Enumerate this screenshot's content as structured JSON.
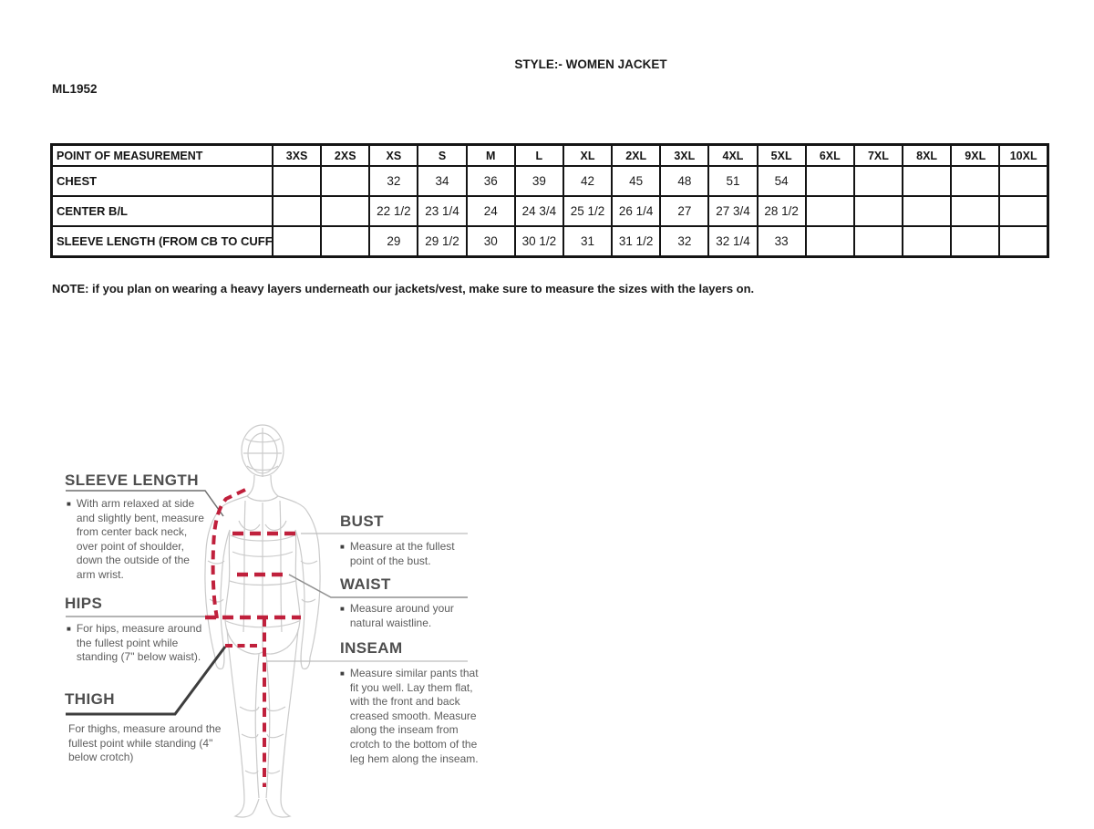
{
  "page": {
    "title": "STYLE:- WOMEN JACKET",
    "model": "ML1952",
    "note": "NOTE: if you plan on wearing a heavy layers underneath our jackets/vest, make sure to measure the sizes with the layers on."
  },
  "size_chart": {
    "header": [
      "POINT OF MEASUREMENT",
      "3XS",
      "2XS",
      "XS",
      "S",
      "M",
      "L",
      "XL",
      "2XL",
      "3XL",
      "4XL",
      "5XL",
      "6XL",
      "7XL",
      "8XL",
      "9XL",
      "10XL"
    ],
    "rows": [
      {
        "label": "CHEST",
        "values": [
          "",
          "",
          "32",
          "34",
          "36",
          "39",
          "42",
          "45",
          "48",
          "51",
          "54",
          "",
          "",
          "",
          "",
          ""
        ]
      },
      {
        "label": "CENTER B/L",
        "values": [
          "",
          "",
          "22 1/2",
          "23 1/4",
          "24",
          "24 3/4",
          "25 1/2",
          "26 1/4",
          "27",
          "27 3/4",
          "28 1/2",
          "",
          "",
          "",
          "",
          ""
        ]
      },
      {
        "label": "SLEEVE LENGTH (FROM CB TO CUFF)",
        "values": [
          "",
          "",
          "29",
          "29 1/2",
          "30",
          "30 1/2",
          "31",
          "31 1/2",
          "32",
          "32 1/4",
          "33",
          "",
          "",
          "",
          "",
          ""
        ]
      }
    ]
  },
  "diagram": {
    "sleeve": {
      "title": "SLEEVE LENGTH",
      "desc": "With arm relaxed at side and slightly bent, measure from center back neck, over point of shoulder, down the outside of the arm wrist."
    },
    "hips": {
      "title": "HIPS",
      "desc": "For hips, measure around the fullest point while standing (7\" below waist)."
    },
    "thigh": {
      "title": "THIGH",
      "desc": "For thighs, measure around the fullest point while standing (4\" below crotch)"
    },
    "bust": {
      "title": "BUST",
      "desc": "Measure at the fullest point of the bust."
    },
    "waist": {
      "title": "WAIST",
      "desc": "Measure around your natural waistline."
    },
    "inseam": {
      "title": "INSEAM",
      "desc": "Measure similar pants that fit you well. Lay them flat, with the front and back creased smooth. Measure along the inseam from crotch to the bottom of the leg hem along the inseam."
    },
    "colors": {
      "measure_line": "#c0203c",
      "figure_line": "#cbcbcb",
      "callout_dark": "#3d3d3d",
      "callout_gray": "#9b9b9b"
    }
  }
}
